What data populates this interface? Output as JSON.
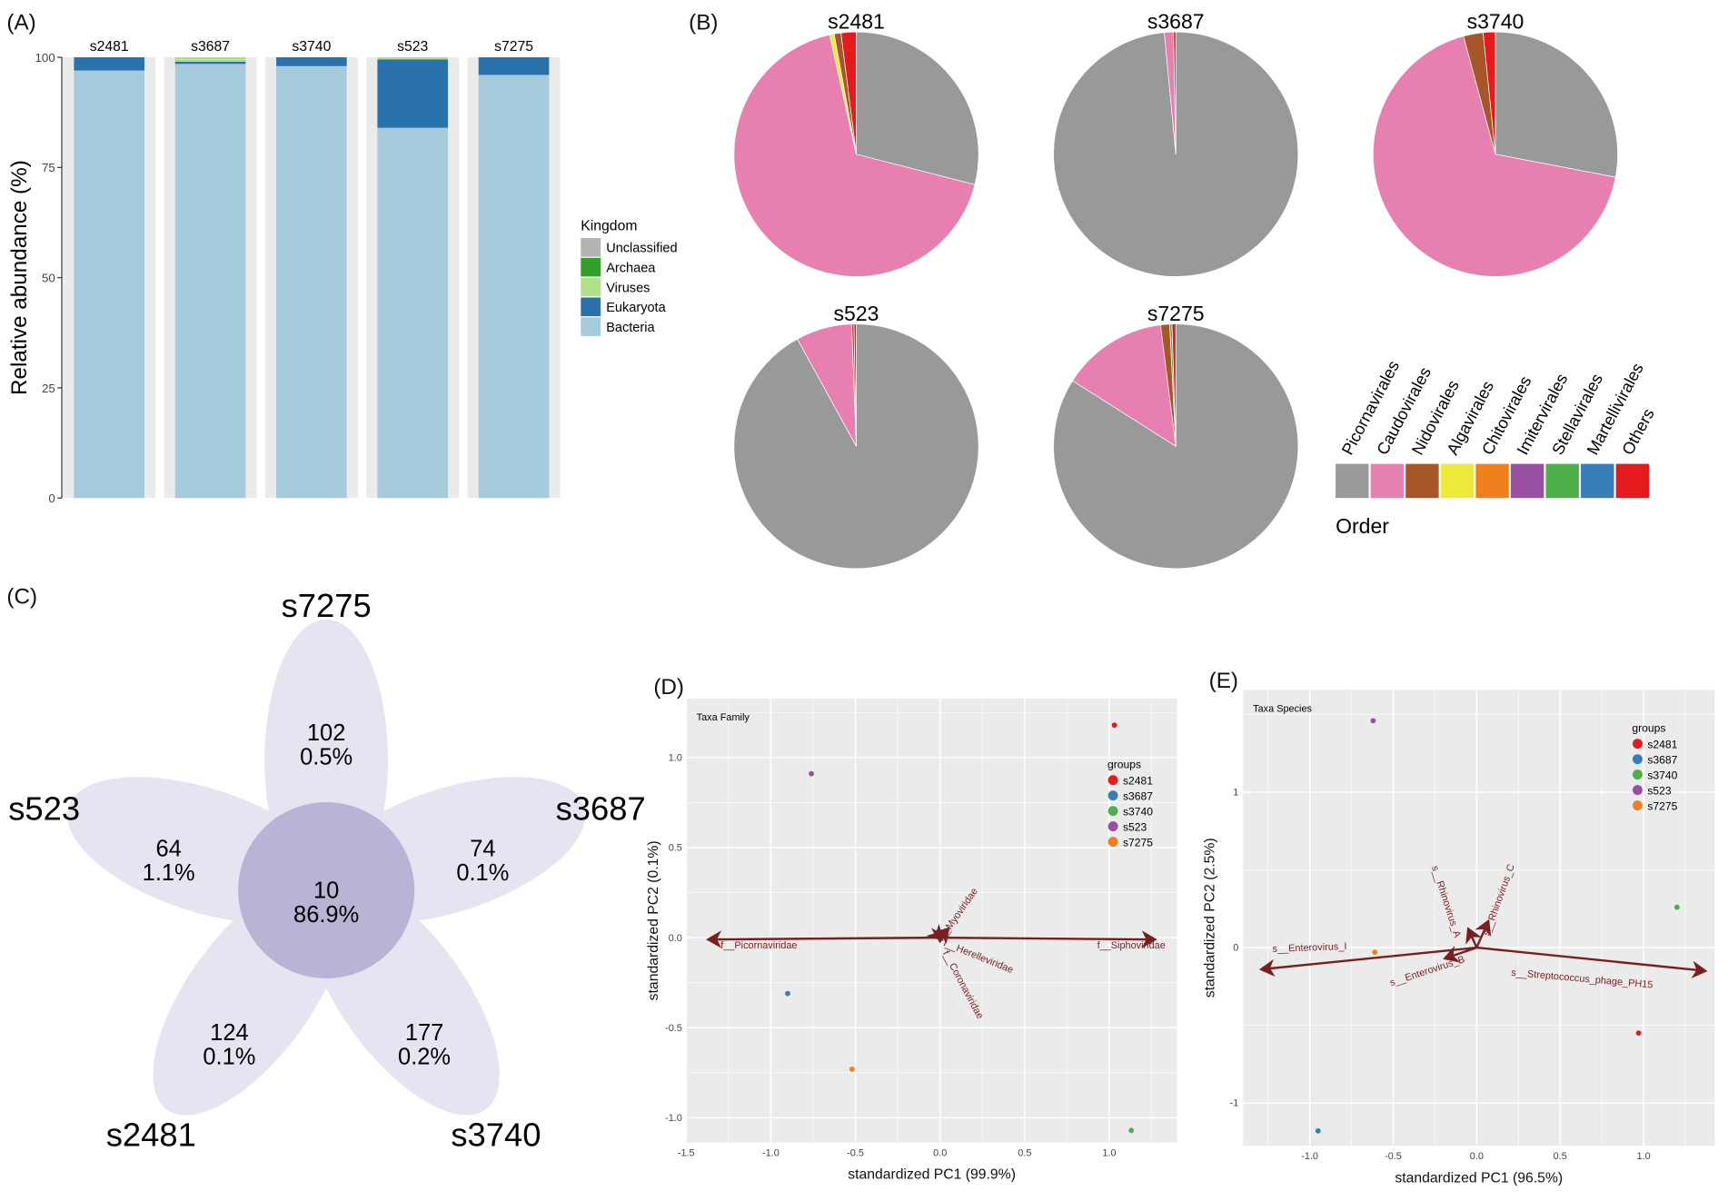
{
  "panel_labels": {
    "a": "(A)",
    "b": "(B)",
    "c": "(C)",
    "d": "(D)",
    "e": "(E)"
  },
  "chart_data": [
    {
      "id": "A",
      "type": "bar",
      "stacked": true,
      "categories": [
        "s2481",
        "s3687",
        "s3740",
        "s523",
        "s7275"
      ],
      "ylabel": "Relative abundance (%)",
      "ylim": [
        0,
        100
      ],
      "yticks": [
        0,
        25,
        50,
        75,
        100
      ],
      "legend_title": "Kingdom",
      "legend": [
        {
          "name": "Unclassified",
          "color": "#b3b3b3"
        },
        {
          "name": "Archaea",
          "color": "#33a02c"
        },
        {
          "name": "Viruses",
          "color": "#b2df8a"
        },
        {
          "name": "Eukaryota",
          "color": "#2a72ab"
        },
        {
          "name": "Bacteria",
          "color": "#a6cbdd"
        }
      ],
      "series": [
        {
          "name": "Bacteria",
          "values": [
            97,
            98.5,
            98,
            84,
            96
          ]
        },
        {
          "name": "Eukaryota",
          "values": [
            3,
            0.5,
            2,
            15.5,
            4
          ]
        },
        {
          "name": "Viruses",
          "values": [
            0,
            1,
            0,
            0.5,
            0
          ]
        },
        {
          "name": "Archaea",
          "values": [
            0,
            0,
            0,
            0,
            0
          ]
        },
        {
          "name": "Unclassified",
          "values": [
            0,
            0,
            0,
            0,
            0
          ]
        }
      ]
    },
    {
      "id": "B",
      "type": "pie",
      "legend_title": "Order",
      "legend": [
        {
          "name": "Picornavirales",
          "color": "#999999"
        },
        {
          "name": "Caudovirales",
          "color": "#e77fb0"
        },
        {
          "name": "Nidovirales",
          "color": "#a65628"
        },
        {
          "name": "Algavirales",
          "color": "#eeea3c"
        },
        {
          "name": "Chitovirales",
          "color": "#f07f1e"
        },
        {
          "name": "Imitervirales",
          "color": "#984ea3"
        },
        {
          "name": "Stellavirales",
          "color": "#4daf4a"
        },
        {
          "name": "Martellivirales",
          "color": "#377eb8"
        },
        {
          "name": "Others",
          "color": "#e41a1c"
        }
      ],
      "pies": [
        {
          "title": "s2481",
          "slices": [
            [
              "Picornavirales",
              29
            ],
            [
              "Caudovirales",
              67.5
            ],
            [
              "Algavirales",
              0.6
            ],
            [
              "Nidovirales",
              0.9
            ],
            [
              "Others",
              2
            ]
          ]
        },
        {
          "title": "s3687",
          "slices": [
            [
              "Picornavirales",
              98.5
            ],
            [
              "Caudovirales",
              1.2
            ],
            [
              "Others",
              0.3
            ]
          ]
        },
        {
          "title": "s3740",
          "slices": [
            [
              "Picornavirales",
              28
            ],
            [
              "Caudovirales",
              67.8
            ],
            [
              "Nidovirales",
              2.6
            ],
            [
              "Others",
              1.6
            ]
          ]
        },
        {
          "title": "s523",
          "slices": [
            [
              "Picornavirales",
              92
            ],
            [
              "Caudovirales",
              7.4
            ],
            [
              "Nidovirales",
              0.3
            ],
            [
              "Others",
              0.3
            ]
          ]
        },
        {
          "title": "s7275",
          "slices": [
            [
              "Picornavirales",
              84
            ],
            [
              "Caudovirales",
              14
            ],
            [
              "Nidovirales",
              1.2
            ],
            [
              "Stellavirales",
              0.3
            ],
            [
              "Others",
              0.5
            ]
          ]
        }
      ]
    },
    {
      "id": "C",
      "type": "venn-flower",
      "core": {
        "count": "10",
        "pct": "86.9%"
      },
      "petals": [
        {
          "name": "s7275",
          "count": "102",
          "pct": "0.5%"
        },
        {
          "name": "s3687",
          "count": "74",
          "pct": "0.1%"
        },
        {
          "name": "s3740",
          "count": "177",
          "pct": "0.2%"
        },
        {
          "name": "s2481",
          "count": "124",
          "pct": "0.1%"
        },
        {
          "name": "s523",
          "count": "64",
          "pct": "1.1%"
        }
      ]
    },
    {
      "id": "D",
      "type": "scatter",
      "subtitle": "Taxa Family",
      "xlabel": "standardized PC1 (99.9%)",
      "ylabel": "standardized PC2 (0.1%)",
      "xlim": [
        -1.5,
        1.32
      ],
      "ylim": [
        -1.2,
        1.3
      ],
      "xticks": [
        "-1.5",
        "-1.0",
        "-0.5",
        "0.0",
        "0.5",
        "1.0"
      ],
      "yticks": [
        "-1.0",
        "-0.5",
        "0.0",
        "0.5",
        "1.0"
      ],
      "legend_title": "groups",
      "points": [
        {
          "group": "s2481",
          "x": 1.03,
          "y": 1.18,
          "color": "#e41a1c"
        },
        {
          "group": "s3687",
          "x": -0.9,
          "y": -0.31,
          "color": "#377eb8"
        },
        {
          "group": "s3740",
          "x": 1.13,
          "y": -1.07,
          "color": "#4daf4a"
        },
        {
          "group": "s523",
          "x": -0.76,
          "y": 0.91,
          "color": "#984ea3"
        },
        {
          "group": "s7275",
          "x": -0.52,
          "y": -0.73,
          "color": "#f07f1e"
        }
      ],
      "arrows": [
        {
          "label": "f__Picornaviridae",
          "x": -1.37,
          "y": -0.01,
          "lx": -1.07,
          "ly": -0.06,
          "rot": 0
        },
        {
          "label": "f__Siphoviridae",
          "x": 1.27,
          "y": -0.01,
          "lx": 1.13,
          "ly": -0.06,
          "rot": 0
        },
        {
          "label": "f__Myoviridae",
          "x": 0.05,
          "y": 0.05,
          "lx": 0.12,
          "ly": 0.12,
          "rot": -55
        },
        {
          "label": "f__Herelleviridae",
          "x": 0.01,
          "y": -0.01,
          "lx": 0.22,
          "ly": -0.12,
          "rot": 22
        },
        {
          "label": "f__Coronaviridae",
          "x": 0.0,
          "y": -0.02,
          "lx": 0.12,
          "ly": -0.27,
          "rot": 62
        }
      ]
    },
    {
      "id": "E",
      "type": "scatter",
      "subtitle": "Taxa Species",
      "xlabel": "standardized PC1 (96.5%)",
      "ylabel": "standardized PC2 (2.5%)",
      "xlim": [
        -1.4,
        1.42
      ],
      "ylim": [
        -1.32,
        1.62
      ],
      "xticks": [
        "-1.0",
        "-0.5",
        "0.0",
        "0.5",
        "1.0"
      ],
      "yticks": [
        "-1",
        "0",
        "1"
      ],
      "legend_title": "groups",
      "points": [
        {
          "group": "s2481",
          "x": 0.97,
          "y": -0.55,
          "color": "#e41a1c"
        },
        {
          "group": "s3687",
          "x": -0.95,
          "y": -1.18,
          "color": "#377eb8"
        },
        {
          "group": "s3740",
          "x": 1.2,
          "y": 0.26,
          "color": "#4daf4a"
        },
        {
          "group": "s523",
          "x": -0.62,
          "y": 1.46,
          "color": "#984ea3"
        },
        {
          "group": "s7275",
          "x": -0.61,
          "y": -0.03,
          "color": "#f07f1e"
        }
      ],
      "arrows": [
        {
          "label": "s__Enterovirus_I",
          "x": -1.29,
          "y": -0.14,
          "lx": -1.0,
          "ly": -0.02,
          "rot": -2
        },
        {
          "label": "s__Streptococcus_phage_PH15",
          "x": 1.37,
          "y": -0.15,
          "lx": 0.63,
          "ly": -0.22,
          "rot": 5
        },
        {
          "label": "s__Enterovirus_B",
          "x": -0.19,
          "y": -0.07,
          "lx": -0.29,
          "ly": -0.17,
          "rot": -18
        },
        {
          "label": "s__Rhinovirus_A",
          "x": -0.05,
          "y": 0.12,
          "lx": -0.2,
          "ly": 0.29,
          "rot": 72
        },
        {
          "label": "s__Rhinovirus_C",
          "x": 0.07,
          "y": 0.17,
          "lx": 0.15,
          "ly": 0.3,
          "rot": -70
        }
      ]
    }
  ]
}
